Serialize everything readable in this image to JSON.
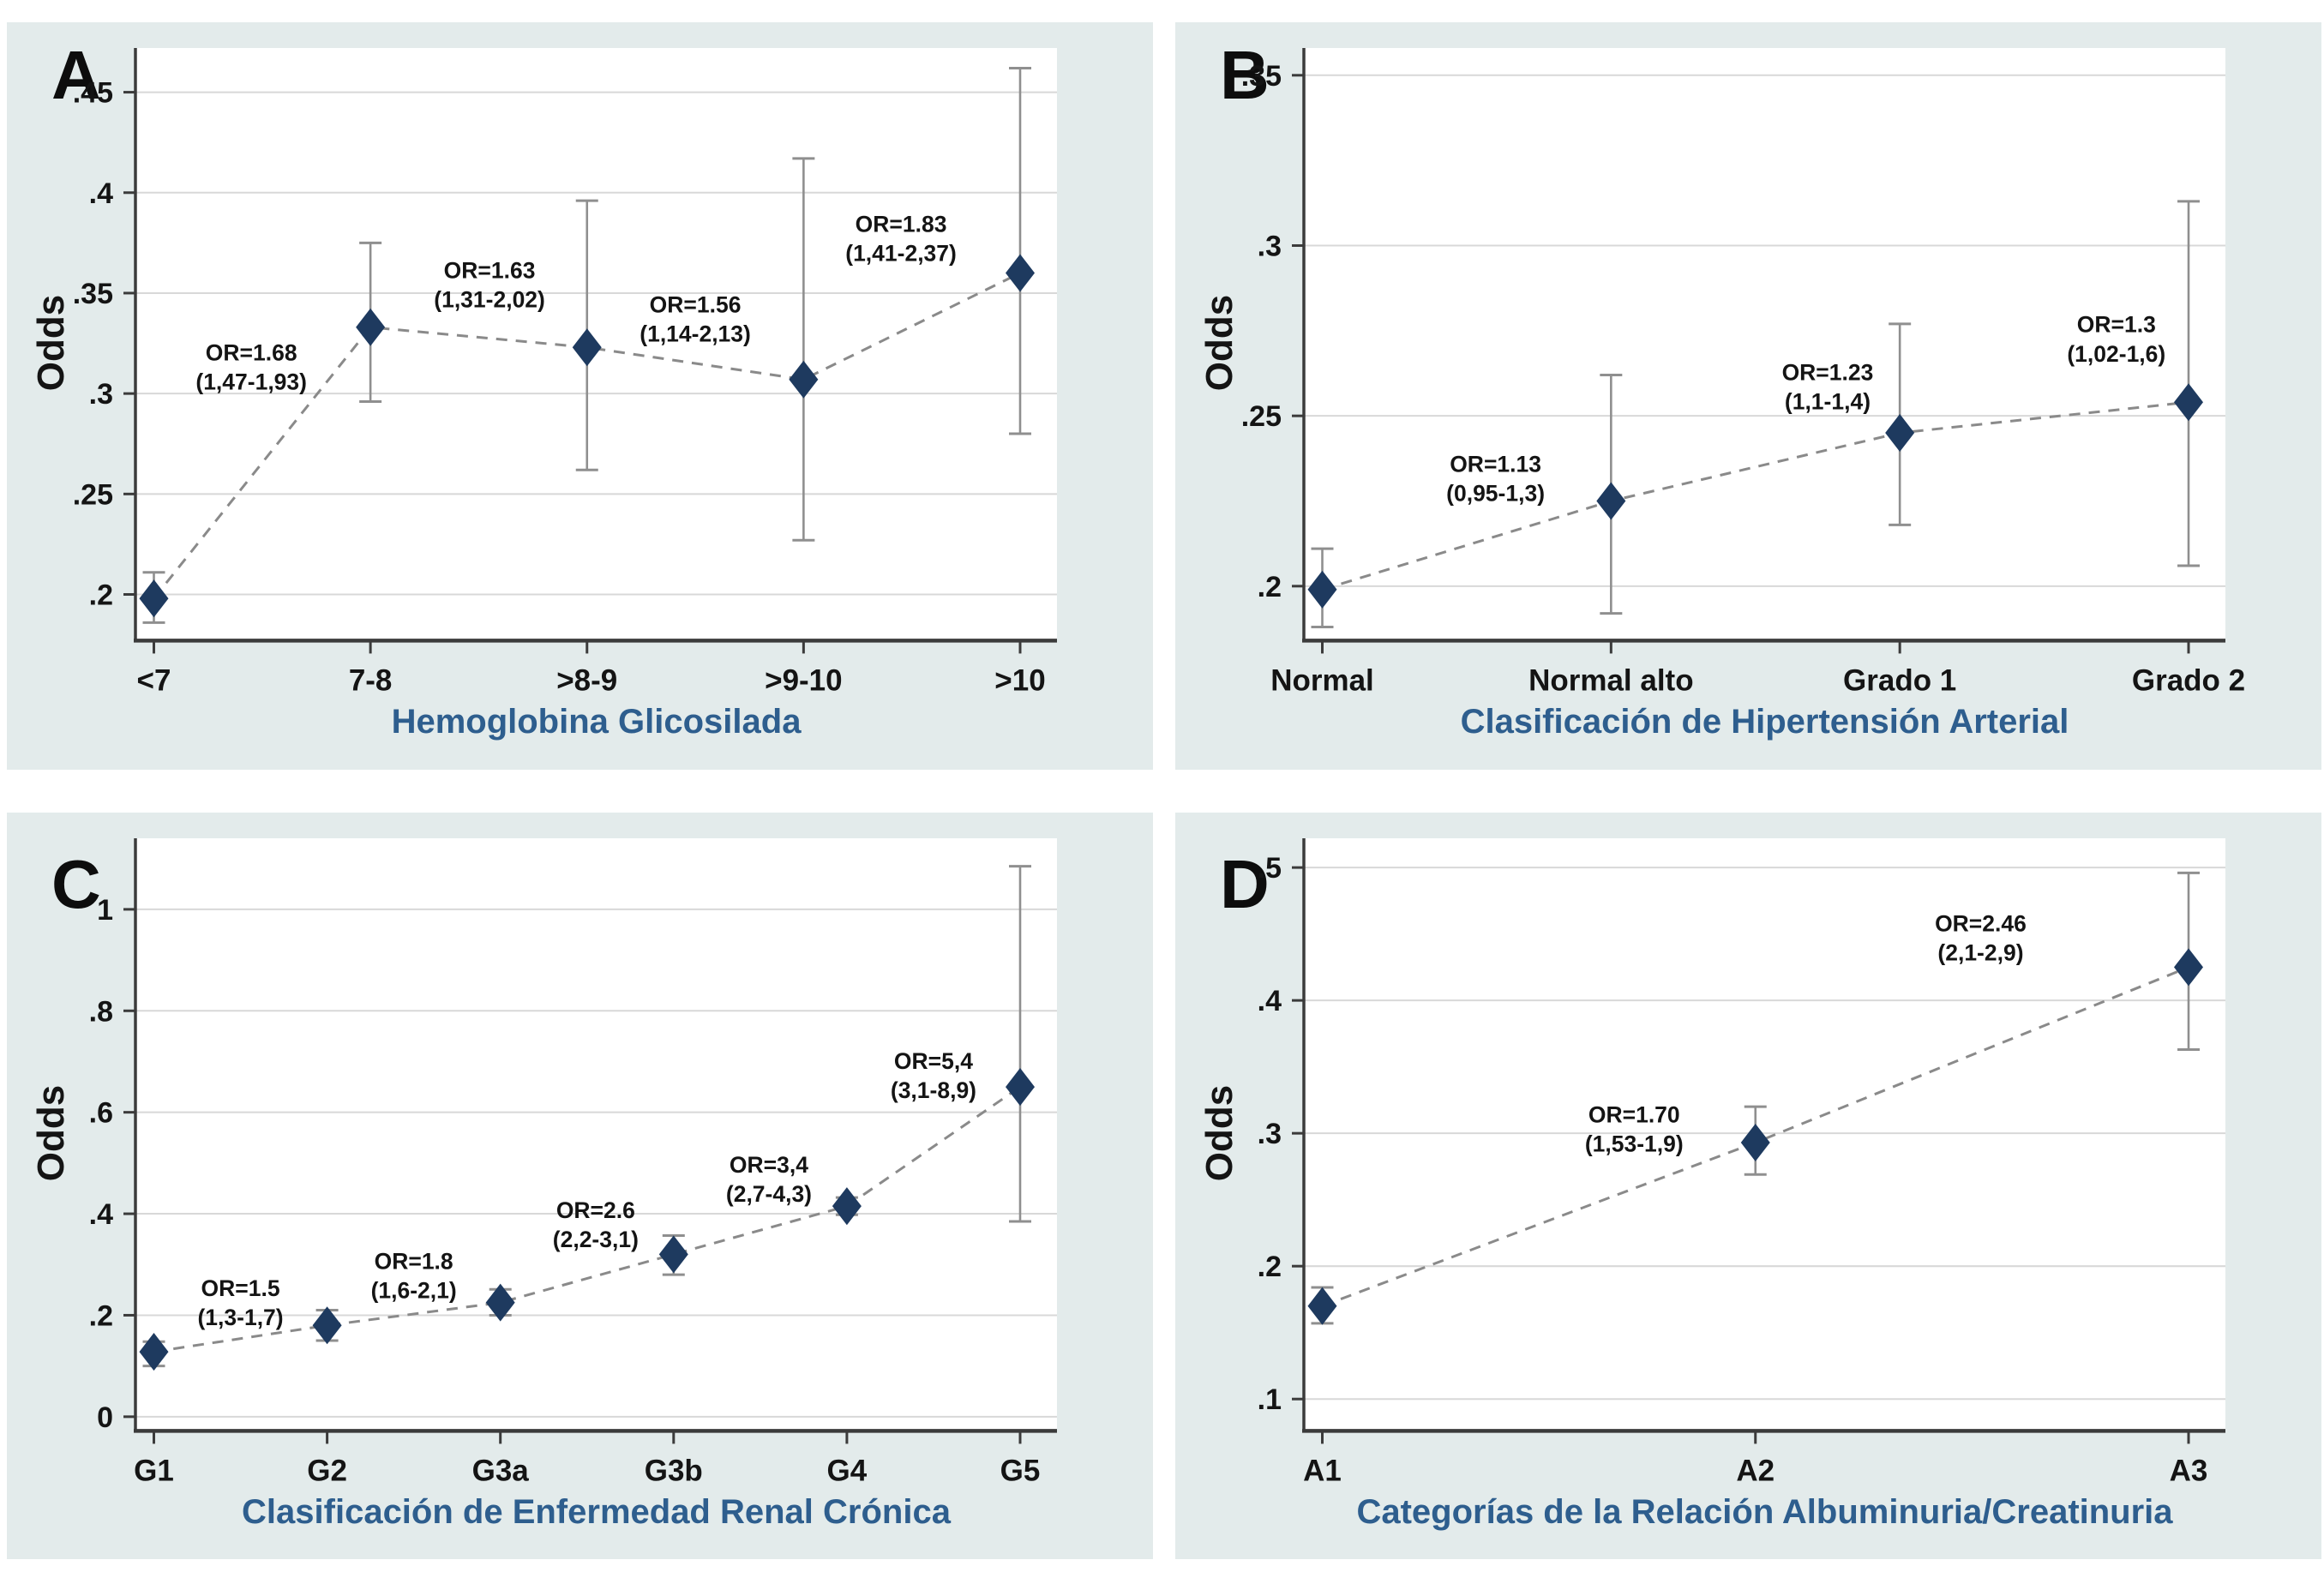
{
  "figure": {
    "background": "#ffffff",
    "panel_background": "#e3ebeb",
    "plot_background": "#ffffff",
    "grid_color": "#d8d8d8",
    "axis_color": "#3b3b3b",
    "marker_color": "#1e3a5f",
    "errorbar_color": "#8f8f8f",
    "line_color": "#8a8a8a",
    "text_color": "#141414",
    "accent_title_color": "#2e5e8e"
  },
  "chart_data": [
    {
      "panel": "A",
      "type": "line",
      "title": "",
      "ylabel": "Odds",
      "xlabel": "Hemoglobina Glicosilada",
      "categories": [
        "<7",
        "7-8",
        ">8-9",
        ">9-10",
        ">10"
      ],
      "values": [
        0.198,
        0.333,
        0.323,
        0.307,
        0.36
      ],
      "ci_low": [
        0.186,
        0.296,
        0.262,
        0.227,
        0.28
      ],
      "ci_high": [
        0.211,
        0.375,
        0.396,
        0.417,
        0.462
      ],
      "ylim": [
        0.177,
        0.472
      ],
      "yticks": [
        0.2,
        0.25,
        0.3,
        0.35,
        0.4,
        0.45
      ],
      "ytick_labels": [
        ".2",
        ".25",
        ".3",
        ".35",
        ".4",
        ".45"
      ],
      "grid": true,
      "legend": "none",
      "annotations": [
        {
          "x": 0.45,
          "y": 0.313,
          "lines": [
            "OR=1.68",
            "(1,47-1,93)"
          ]
        },
        {
          "x": 1.55,
          "y": 0.354,
          "lines": [
            "OR=1.63",
            "(1,31-2,02)"
          ]
        },
        {
          "x": 2.5,
          "y": 0.337,
          "lines": [
            "OR=1.56",
            "(1,14-2,13)"
          ]
        },
        {
          "x": 3.45,
          "y": 0.377,
          "lines": [
            "OR=1.83",
            "(1,41-2,37)"
          ]
        }
      ]
    },
    {
      "panel": "B",
      "type": "line",
      "title": "",
      "ylabel": "Odds",
      "xlabel": "Clasificación de Hipertensión Arterial",
      "categories": [
        "Normal",
        "Normal alto",
        "Grado 1",
        "Grado 2"
      ],
      "values": [
        0.199,
        0.225,
        0.245,
        0.254
      ],
      "ci_low": [
        0.188,
        0.192,
        0.218,
        0.206
      ],
      "ci_high": [
        0.211,
        0.262,
        0.277,
        0.313
      ],
      "ylim": [
        0.184,
        0.358
      ],
      "yticks": [
        0.2,
        0.25,
        0.3,
        0.35
      ],
      "ytick_labels": [
        ".2",
        ".25",
        ".3",
        ".35"
      ],
      "grid": true,
      "legend": "none",
      "annotations": [
        {
          "x": 0.6,
          "y": 0.2315,
          "lines": [
            "OR=1.13",
            "(0,95-1,3)"
          ]
        },
        {
          "x": 1.75,
          "y": 0.2585,
          "lines": [
            "OR=1.23",
            "(1,1-1,4)"
          ]
        },
        {
          "x": 2.75,
          "y": 0.2725,
          "lines": [
            "OR=1.3",
            "(1,02-1,6)"
          ]
        }
      ]
    },
    {
      "panel": "C",
      "type": "line",
      "title": "",
      "ylabel": "Odds",
      "xlabel": "Clasificación de Enfermedad Renal Crónica",
      "categories": [
        "G1",
        "G2",
        "G3a",
        "G3b",
        "G4",
        "G5"
      ],
      "values": [
        0.128,
        0.18,
        0.225,
        0.32,
        0.415,
        0.65
      ],
      "ci_low": [
        0.1,
        0.15,
        0.2,
        0.28,
        0.398,
        0.385
      ],
      "ci_high": [
        0.148,
        0.21,
        0.251,
        0.357,
        0.432,
        1.085
      ],
      "ylim": [
        -0.028,
        1.14
      ],
      "yticks": [
        0,
        0.2,
        0.4,
        0.6,
        0.8,
        1
      ],
      "ytick_labels": [
        "0",
        ".2",
        ".4",
        ".6",
        ".8",
        "1"
      ],
      "grid": true,
      "legend": "none",
      "annotations": [
        {
          "x": 0.5,
          "y": 0.224,
          "lines": [
            "OR=1.5",
            "(1,3-1,7)"
          ]
        },
        {
          "x": 1.5,
          "y": 0.278,
          "lines": [
            "OR=1.8",
            "(1,6-2,1)"
          ]
        },
        {
          "x": 2.55,
          "y": 0.378,
          "lines": [
            "OR=2.6",
            "(2,2-3,1)"
          ]
        },
        {
          "x": 3.55,
          "y": 0.468,
          "lines": [
            "OR=3,4",
            "(2,7-4,3)"
          ]
        },
        {
          "x": 4.5,
          "y": 0.672,
          "lines": [
            "OR=5,4",
            "(3,1-8,9)"
          ]
        }
      ]
    },
    {
      "panel": "D",
      "type": "line",
      "title": "",
      "ylabel": "Odds",
      "xlabel": "Categorías de la Relación Albuminuria/Creatinuria",
      "categories": [
        "A1",
        "A2",
        "A3"
      ],
      "values": [
        0.17,
        0.293,
        0.425
      ],
      "ci_low": [
        0.157,
        0.269,
        0.363
      ],
      "ci_high": [
        0.184,
        0.32,
        0.496
      ],
      "ylim": [
        0.076,
        0.522
      ],
      "yticks": [
        0.1,
        0.2,
        0.3,
        0.4,
        0.5
      ],
      "ytick_labels": [
        ".1",
        ".2",
        ".3",
        ".4",
        ".5"
      ],
      "grid": true,
      "legend": "none",
      "annotations": [
        {
          "x": 0.72,
          "y": 0.303,
          "lines": [
            "OR=1.70",
            "(1,53-1,9)"
          ]
        },
        {
          "x": 1.52,
          "y": 0.447,
          "lines": [
            "OR=2.46",
            "(2,1-2,9)"
          ]
        }
      ]
    }
  ]
}
